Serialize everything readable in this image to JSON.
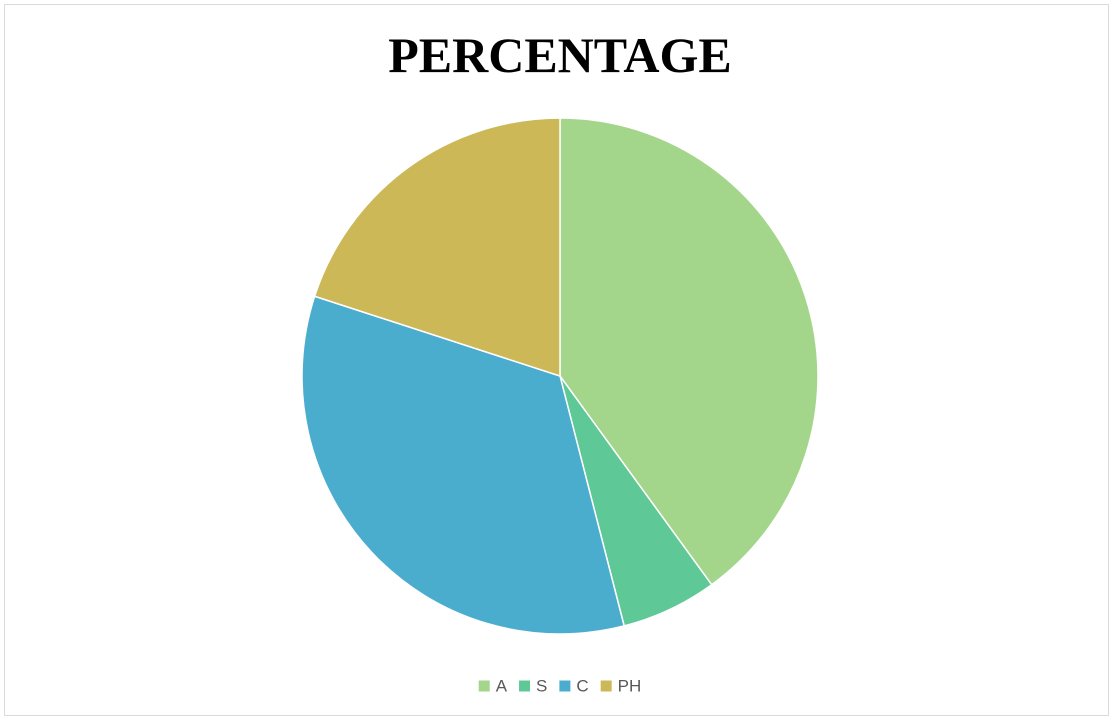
{
  "chart_data": {
    "type": "pie",
    "title": "PERCENTAGE",
    "categories": [
      "A",
      "S",
      "C",
      "PH"
    ],
    "values": [
      40,
      6,
      34,
      20
    ],
    "colors": [
      "#a3d68b",
      "#5fc897",
      "#4badce",
      "#cdb857"
    ],
    "legend": "bottom"
  }
}
